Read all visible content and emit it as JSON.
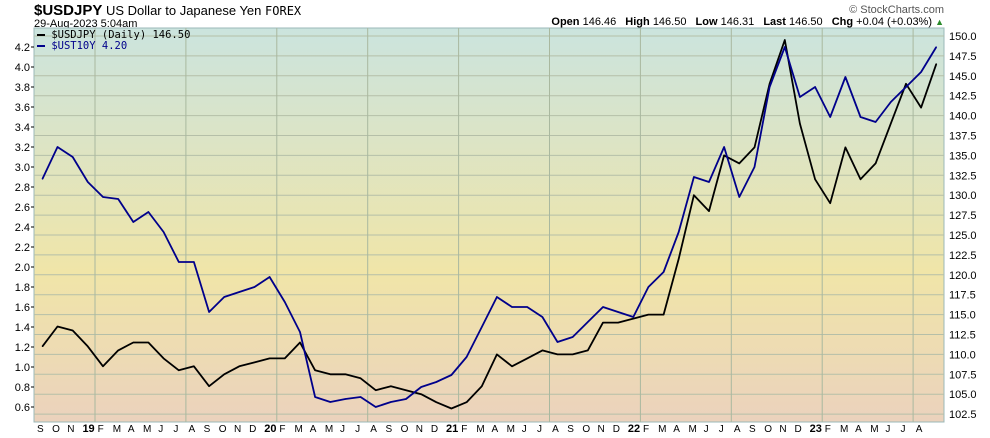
{
  "header": {
    "symbol": "$USDJPY",
    "description": "US Dollar to Japanese Yen",
    "exchange": "FOREX",
    "datetime": "29-Aug-2023 5:04am",
    "brand": "© StockCharts.com",
    "open_label": "Open",
    "open": "146.46",
    "high_label": "High",
    "high": "146.50",
    "low_label": "Low",
    "low": "146.31",
    "last_label": "Last",
    "last": "146.50",
    "chg_label": "Chg",
    "chg": "+0.04 (+0.03%)",
    "chg_icon": "triangle-up-icon"
  },
  "chart_data": {
    "type": "line",
    "grid": true,
    "legend_placement": "top-left",
    "x_tick_labels": [
      "S",
      "O",
      "N",
      "19",
      "F",
      "M",
      "A",
      "M",
      "J",
      "J",
      "A",
      "S",
      "O",
      "N",
      "D",
      "20",
      "F",
      "M",
      "A",
      "M",
      "J",
      "J",
      "A",
      "S",
      "O",
      "N",
      "D",
      "21",
      "F",
      "M",
      "A",
      "M",
      "J",
      "J",
      "A",
      "S",
      "O",
      "N",
      "D",
      "22",
      "F",
      "M",
      "A",
      "M",
      "J",
      "J",
      "A",
      "S",
      "O",
      "N",
      "D",
      "23",
      "F",
      "M",
      "A",
      "M",
      "J",
      "J",
      "A"
    ],
    "x_tick_labels_note_first_D": "D",
    "x_months": [
      "2018-09",
      "2018-10",
      "2018-11",
      "2018-12",
      "2019-01",
      "2019-02",
      "2019-03",
      "2019-04",
      "2019-05",
      "2019-06",
      "2019-07",
      "2019-08",
      "2019-09",
      "2019-10",
      "2019-11",
      "2019-12",
      "2020-01",
      "2020-02",
      "2020-03",
      "2020-04",
      "2020-05",
      "2020-06",
      "2020-07",
      "2020-08",
      "2020-09",
      "2020-10",
      "2020-11",
      "2020-12",
      "2021-01",
      "2021-02",
      "2021-03",
      "2021-04",
      "2021-05",
      "2021-06",
      "2021-07",
      "2021-08",
      "2021-09",
      "2021-10",
      "2021-11",
      "2021-12",
      "2022-01",
      "2022-02",
      "2022-03",
      "2022-04",
      "2022-05",
      "2022-06",
      "2022-07",
      "2022-08",
      "2022-09",
      "2022-10",
      "2022-11",
      "2022-12",
      "2023-01",
      "2023-02",
      "2023-03",
      "2023-04",
      "2023-05",
      "2023-06",
      "2023-07",
      "2023-08"
    ],
    "left_axis": {
      "ylim": [
        0.5,
        4.3
      ],
      "ticks": [
        "0.6",
        "0.8",
        "1.0",
        "1.2",
        "1.4",
        "1.6",
        "1.8",
        "2.0",
        "2.2",
        "2.4",
        "2.6",
        "2.8",
        "3.0",
        "3.2",
        "3.4",
        "3.6",
        "3.8",
        "4.0",
        "4.2"
      ]
    },
    "right_axis": {
      "ylim": [
        101.5,
        151.0
      ],
      "ticks": [
        "102.5",
        "105.0",
        "107.5",
        "110.0",
        "112.5",
        "115.0",
        "117.5",
        "120.0",
        "122.5",
        "125.0",
        "127.5",
        "130.0",
        "132.5",
        "135.0",
        "137.5",
        "140.0",
        "142.5",
        "145.0",
        "147.5",
        "150.0"
      ]
    },
    "series": [
      {
        "name": "$USDJPY (Daily) 146.50",
        "axis": "right",
        "color": "#000000",
        "values": [
          111.0,
          113.5,
          113.0,
          111.0,
          108.5,
          110.5,
          111.5,
          111.5,
          109.5,
          108.0,
          108.5,
          106.0,
          107.5,
          108.5,
          109.0,
          109.5,
          109.5,
          111.5,
          108.0,
          107.5,
          107.5,
          107.0,
          105.5,
          106.0,
          105.5,
          105.0,
          104.0,
          103.2,
          104.0,
          106.0,
          110.0,
          108.5,
          109.5,
          110.5,
          110.0,
          110.0,
          110.5,
          114.0,
          114.0,
          114.5,
          115.0,
          115.0,
          122.0,
          130.0,
          128.0,
          135.0,
          134.0,
          136.0,
          144.0,
          149.5,
          139.0,
          132.0,
          129.0,
          136.0,
          132.0,
          134.0,
          139.0,
          144.0,
          141.0,
          146.5
        ]
      },
      {
        "name": "$UST10Y 4.20",
        "axis": "left",
        "color": "#00008b",
        "values": [
          2.88,
          3.2,
          3.1,
          2.85,
          2.7,
          2.68,
          2.45,
          2.55,
          2.35,
          2.05,
          2.05,
          1.55,
          1.7,
          1.75,
          1.8,
          1.9,
          1.65,
          1.35,
          0.7,
          0.65,
          0.68,
          0.7,
          0.6,
          0.65,
          0.68,
          0.8,
          0.85,
          0.92,
          1.1,
          1.4,
          1.7,
          1.6,
          1.6,
          1.5,
          1.25,
          1.3,
          1.45,
          1.6,
          1.55,
          1.5,
          1.8,
          1.95,
          2.35,
          2.9,
          2.85,
          3.2,
          2.7,
          3.0,
          3.8,
          4.2,
          3.7,
          3.8,
          3.5,
          3.9,
          3.5,
          3.45,
          3.65,
          3.8,
          3.95,
          4.2
        ]
      }
    ]
  }
}
